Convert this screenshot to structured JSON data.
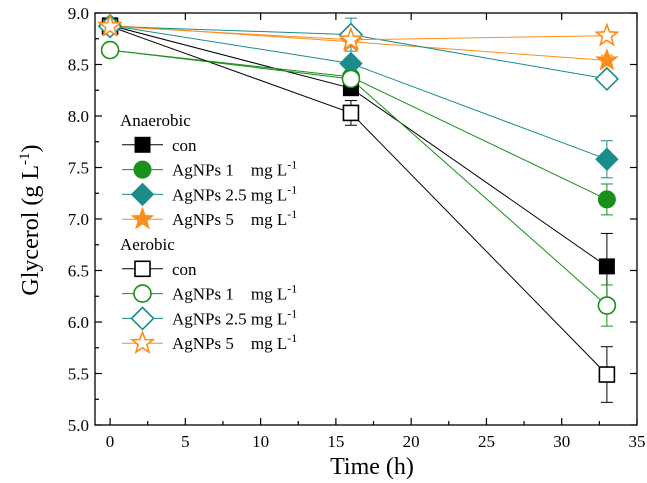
{
  "chart_data": {
    "type": "line",
    "title": "",
    "xlabel": "Time (h)",
    "ylabel": "Glycerol (g L",
    "ylabel_sup": "-1",
    "xlim": [
      -1,
      35
    ],
    "ylim": [
      5.0,
      9.0
    ],
    "xticks": [
      "0",
      "5",
      "10",
      "15",
      "20",
      "25",
      "30",
      "35"
    ],
    "xtick_values": [
      0,
      5,
      10,
      15,
      20,
      25,
      30,
      35
    ],
    "yticks": [
      "5.0",
      "5.5",
      "6.0",
      "6.5",
      "7.0",
      "7.5",
      "8.0",
      "8.5",
      "9.0"
    ],
    "ytick_values": [
      5.0,
      5.5,
      6.0,
      6.5,
      7.0,
      7.5,
      8.0,
      8.5,
      9.0
    ],
    "x": [
      0,
      16,
      33
    ],
    "legend": {
      "placement": "left",
      "groups": [
        {
          "title": "Anaerobic",
          "series": [
            0,
            1,
            2,
            3
          ]
        },
        {
          "title": "Aerobic",
          "series": [
            4,
            5,
            6,
            7
          ]
        }
      ]
    },
    "series": [
      {
        "group": "Anaerobic",
        "label": "con",
        "unit": "",
        "unit_sup": "",
        "marker": "square",
        "filled": true,
        "color": "#000000",
        "values": [
          8.88,
          8.27,
          6.54
        ],
        "errors": [
          0.04,
          0.07,
          0.32
        ]
      },
      {
        "group": "Anaerobic",
        "label": "AgNPs 1    mg L",
        "unit": "",
        "unit_sup": "-1",
        "marker": "circle",
        "filled": true,
        "color": "#1a8f1a",
        "values": [
          8.64,
          8.38,
          7.19
        ],
        "errors": [
          0.05,
          0.06,
          0.15
        ]
      },
      {
        "group": "Anaerobic",
        "label": "AgNPs 2.5 mg L",
        "unit": "",
        "unit_sup": "-1",
        "marker": "diamond",
        "filled": true,
        "color": "#1a8c8c",
        "values": [
          8.88,
          8.51,
          7.58
        ],
        "errors": [
          0.04,
          0.05,
          0.18
        ]
      },
      {
        "group": "Anaerobic",
        "label": "AgNPs 5    mg L",
        "unit": "",
        "unit_sup": "-1",
        "marker": "star",
        "filled": true,
        "color": "#ff8c1a",
        "values": [
          8.88,
          8.72,
          8.54
        ],
        "errors": [
          0.03,
          0.04,
          0.05
        ]
      },
      {
        "group": "Aerobic",
        "label": "con",
        "unit": "",
        "unit_sup": "",
        "marker": "square",
        "filled": false,
        "color": "#000000",
        "values": [
          8.87,
          8.03,
          5.49
        ],
        "errors": [
          0.05,
          0.12,
          0.27
        ]
      },
      {
        "group": "Aerobic",
        "label": "AgNPs 1    mg L",
        "unit": "",
        "unit_sup": "-1",
        "marker": "circle",
        "filled": false,
        "color": "#1a8f1a",
        "values": [
          8.64,
          8.36,
          6.16
        ],
        "errors": [
          0.05,
          0.06,
          0.2
        ]
      },
      {
        "group": "Aerobic",
        "label": "AgNPs 2.5 mg L",
        "unit": "",
        "unit_sup": "-1",
        "marker": "diamond",
        "filled": false,
        "color": "#1a8c8c",
        "values": [
          8.87,
          8.79,
          8.36
        ],
        "errors": [
          0.04,
          0.16,
          0.05
        ]
      },
      {
        "group": "Aerobic",
        "label": "AgNPs 5    mg L",
        "unit": "",
        "unit_sup": "-1",
        "marker": "star",
        "filled": false,
        "color": "#ff8c1a",
        "values": [
          8.87,
          8.74,
          8.78
        ],
        "errors": [
          0.04,
          0.04,
          0.04
        ]
      }
    ]
  }
}
